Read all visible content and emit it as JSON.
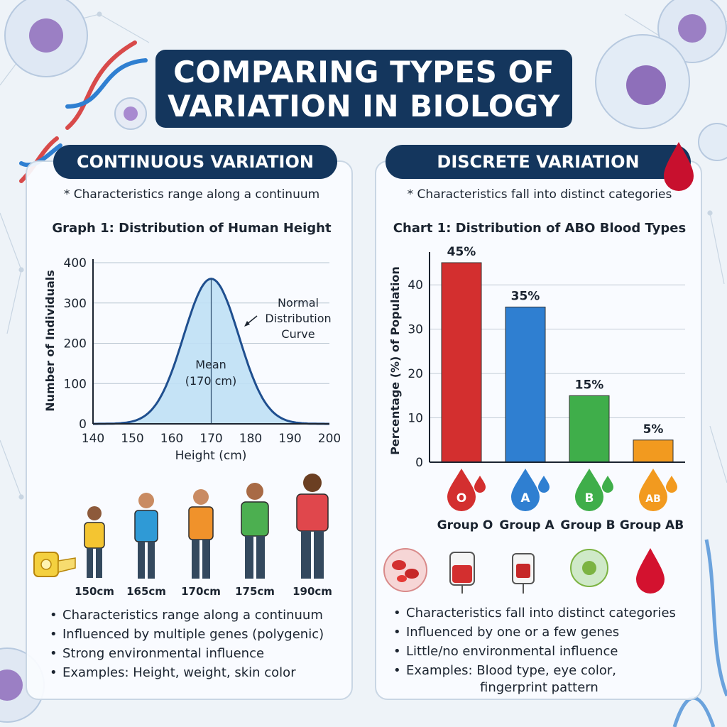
{
  "title": {
    "line1": "COMPARING TYPES OF",
    "line2": "VARIATION IN BIOLOGY"
  },
  "continuous": {
    "heading": "CONTINUOUS VARIATION",
    "note": "* Characteristics range along a continuum",
    "graph_title": "Graph 1: Distribution of Human Height",
    "curve_label": [
      "Normal",
      "Distribution",
      "Curve"
    ],
    "mean_label": [
      "Mean",
      "(170 cm)"
    ],
    "people_heights": [
      "150cm",
      "165cm",
      "170cm",
      "175cm",
      "190cm"
    ],
    "bullets": [
      "Characteristics range along a continuum",
      "Influenced by multiple genes (polygenic)",
      "Strong environmental influence",
      "Examples: Height, weight, skin color"
    ]
  },
  "discrete": {
    "heading": "DISCRETE VARIATION",
    "note": "* Characteristics fall into distinct categories",
    "graph_title": "Chart 1: Distribution of ABO Blood Types",
    "bullets": [
      "Characteristics fall into distinct categories",
      "Influenced by one or a few genes",
      "Little/no environmental influence",
      "Examples: Blood type, eye color,"
    ],
    "bullet_continuation": "fingerprint pattern"
  },
  "chart_data": [
    {
      "type": "area",
      "title": "Graph 1: Distribution of Human Height",
      "xlabel": "Height (cm)",
      "ylabel": "Number of Individuals",
      "xlim": [
        140,
        200
      ],
      "ylim": [
        0,
        400
      ],
      "xticks": [
        140,
        150,
        160,
        170,
        180,
        190,
        200
      ],
      "yticks": [
        0,
        100,
        200,
        300,
        400
      ],
      "distribution": "normal",
      "mean": 170,
      "sd": 7,
      "peak": 360,
      "annotations": [
        "Normal Distribution Curve",
        "Mean (170 cm)"
      ],
      "grid": true
    },
    {
      "type": "bar",
      "title": "Chart 1: Distribution of ABO Blood Types",
      "ylabel": "Percentage (%) of Population",
      "categories": [
        "Group O",
        "Group A",
        "Group B",
        "Group AB"
      ],
      "icon_letters": [
        "O",
        "A",
        "B",
        "AB"
      ],
      "values": [
        45,
        35,
        15,
        5
      ],
      "value_labels": [
        "45%",
        "35%",
        "15%",
        "5%"
      ],
      "colors": [
        "#d32f2f",
        "#2f7fd1",
        "#3fae4a",
        "#f29a1f"
      ],
      "ylim": [
        0,
        45
      ],
      "yticks": [
        0,
        10,
        20,
        30,
        40
      ],
      "grid": true
    }
  ]
}
